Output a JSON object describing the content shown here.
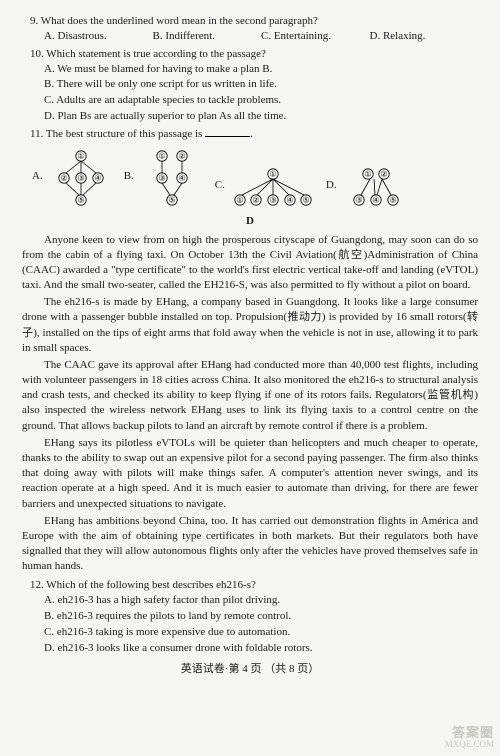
{
  "q9": {
    "stem": "9. What does the underlined word mean in the second paragraph?",
    "choices": {
      "A": "A. Disastrous.",
      "B": "B. Indifferent.",
      "C": "C. Entertaining.",
      "D": "D. Relaxing."
    }
  },
  "q10": {
    "stem": "10. Which statement is true according to the passage?",
    "choices": {
      "A": "A. We must be blamed for having to make a plan B.",
      "B": "B. There will be only one script for us written in life.",
      "C": "C. Adults are an adaptable species to tackle problems.",
      "D": "D. Plan Bs are actually superior to plan As all the time."
    }
  },
  "q11": {
    "stem_pre": "11. The best structure of this passage is ",
    "labels": {
      "A": "A.",
      "B": "B.",
      "C": "C.",
      "D": "D."
    }
  },
  "section_d": "D",
  "passage": {
    "p1": "Anyone keen to view from on high the prosperous cityscape of Guangdong, may soon can do so from the cabin of a flying taxi. On October 13th the Civil Aviation(航空)Administration of China (CAAC) awarded a \"type certificate\" to the world's first electric vertical take-off and landing (eVTOL) taxi. And the small two-seater, called the EH216-S, was also permitted to fly without a pilot on board.",
    "p2": "The eh216-s is made by EHang, a company based in Guangdong. It looks like a large consumer drone with a passenger bubble installed on top. Propulsion(推动力) is provided by 16 small rotors(转子), installed on the tips of eight arms that fold away when the vehicle is not in use, allowing it to park in small spaces.",
    "p3": "The CAAC gave its approval after EHang had conducted more than 40,000 test flights, including with volunteer passengers in 18 cities across China. It also monitored the eh216-s to structural analysis and crash tests, and checked its ability to keep flying if one of its rotors fails. Regulators(监管机构) also inspected the wireless network EHang uses to link its flying taxis to a control centre on the ground. That allows backup pilots to land an aircraft by remote control if there is a problem.",
    "p4": "EHang says its pilotless eVTOLs will be quieter than helicopters and much cheaper to operate, thanks to the ability to swap out an expensive pilot for a second paying passenger. The firm also thinks that doing away with pilots will make things safer. A computer's attention never swings, and its reaction operate at a high speed. And it is much easier to automate than driving, for there are fewer barriers and unexpected situations to navigate.",
    "p5": "EHang has ambitions beyond China, too. It has carried out demonstration flights in América and Europe with the aim of obtaining type certificates in both markets. But their regulators both have signalled that they will allow autonomous flights only after the vehicles have proved themselves safe in human hands."
  },
  "q12": {
    "stem": "12. Which of the following best describes eh216-s?",
    "choices": {
      "A": "A. eh216-3 has a high safety factor than pilot driving.",
      "B": "B. eh216-3 requires the pilots to land by remote control.",
      "C": "C. eh216-3 taking is more expensive due to automation.",
      "D": "D. eh216-3 looks like a consumer drone with foldable rotors."
    }
  },
  "footer": "英语试卷·第 4 页 （共 8 页）",
  "watermark": {
    "line1": "答案圈",
    "line2": "MXQE.COM"
  },
  "diagram": {
    "node_r": 5.2,
    "stroke": "#000000",
    "A": {
      "nodes": [
        [
          35,
          10,
          "①"
        ],
        [
          18,
          32,
          "②"
        ],
        [
          35,
          32,
          "③"
        ],
        [
          52,
          32,
          "④"
        ],
        [
          35,
          54,
          "⑤"
        ]
      ],
      "edges": [
        [
          35,
          15,
          20,
          27
        ],
        [
          35,
          15,
          35,
          27
        ],
        [
          35,
          15,
          50,
          27
        ],
        [
          20,
          37,
          33,
          49
        ],
        [
          35,
          37,
          35,
          49
        ],
        [
          50,
          37,
          37,
          49
        ]
      ]
    },
    "B": {
      "nodes": [
        [
          25,
          10,
          "①"
        ],
        [
          45,
          10,
          "②"
        ],
        [
          25,
          32,
          "③"
        ],
        [
          45,
          32,
          "④"
        ],
        [
          35,
          54,
          "⑤"
        ]
      ],
      "edges": [
        [
          25,
          15,
          25,
          27
        ],
        [
          45,
          15,
          45,
          27
        ],
        [
          25,
          37,
          33,
          49
        ],
        [
          45,
          37,
          37,
          49
        ]
      ]
    },
    "C": {
      "nodes": [
        [
          45,
          10,
          "①"
        ],
        [
          12,
          36,
          "①"
        ],
        [
          28,
          36,
          "②"
        ],
        [
          45,
          36,
          "③"
        ],
        [
          62,
          36,
          "④"
        ],
        [
          78,
          36,
          "⑤"
        ]
      ],
      "edges": [
        [
          45,
          15,
          14,
          31
        ],
        [
          45,
          15,
          29,
          31
        ],
        [
          45,
          15,
          45,
          31
        ],
        [
          45,
          15,
          61,
          31
        ],
        [
          45,
          15,
          76,
          31
        ]
      ]
    },
    "D": {
      "nodes": [
        [
          28,
          10,
          "①"
        ],
        [
          44,
          10,
          "②"
        ],
        [
          19,
          36,
          "③"
        ],
        [
          36,
          36,
          "④"
        ],
        [
          53,
          36,
          "⑤"
        ]
      ],
      "edges": [
        [
          30,
          15,
          21,
          31
        ],
        [
          34,
          15,
          35,
          31
        ],
        [
          42,
          15,
          37,
          31
        ],
        [
          42,
          15,
          51,
          31
        ]
      ]
    }
  }
}
